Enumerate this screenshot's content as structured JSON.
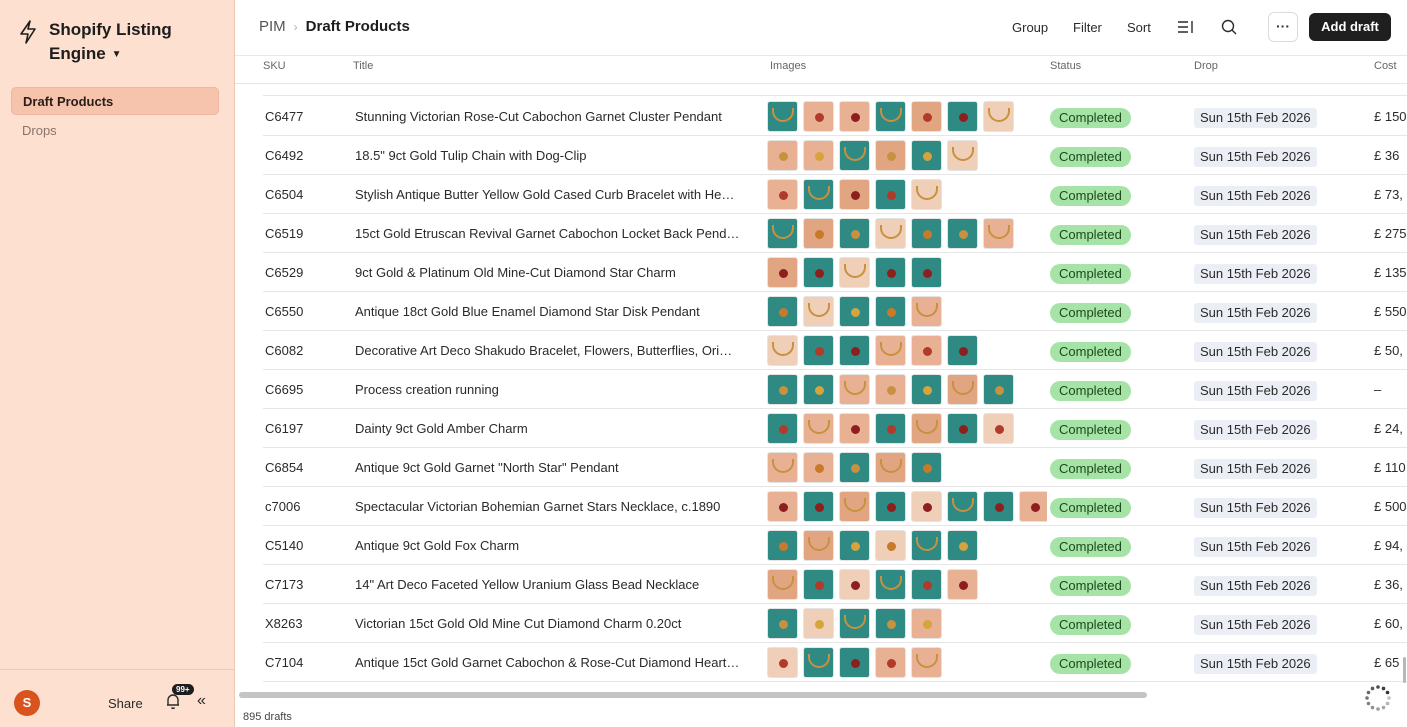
{
  "sidebar": {
    "app_name": "Shopify Listing Engine",
    "nav": [
      {
        "label": "Draft Products",
        "active": true
      },
      {
        "label": "Drops",
        "active": false
      }
    ],
    "user_initial": "S",
    "share_label": "Share",
    "notifications_badge": "99+"
  },
  "header": {
    "breadcrumb_root": "PIM",
    "breadcrumb_current": "Draft Products",
    "group_label": "Group",
    "filter_label": "Filter",
    "sort_label": "Sort",
    "more_label": "···",
    "add_label": "Add draft"
  },
  "table": {
    "columns": {
      "sku": "SKU",
      "title": "Title",
      "images": "Images",
      "status": "Status",
      "drop": "Drop",
      "cost": "Cost"
    },
    "rows": [
      {
        "sku": "C6477",
        "title": "Stunning Victorian Rose-Cut Cabochon Garnet Cluster Pendant",
        "images": 7,
        "status": "Completed",
        "drop": "Sun 15th Feb 2026",
        "cost": "£ 150"
      },
      {
        "sku": "C6492",
        "title": "18.5\" 9ct Gold Tulip Chain with Dog-Clip",
        "images": 6,
        "status": "Completed",
        "drop": "Sun 15th Feb 2026",
        "cost": "£ 36"
      },
      {
        "sku": "C6504",
        "title": "Stylish Antique Butter Yellow Gold Cased Curb Bracelet with He…",
        "images": 5,
        "status": "Completed",
        "drop": "Sun 15th Feb 2026",
        "cost": "£ 73,"
      },
      {
        "sku": "C6519",
        "title": "15ct Gold Etruscan Revival Garnet Cabochon Locket Back Pend…",
        "images": 7,
        "status": "Completed",
        "drop": "Sun 15th Feb 2026",
        "cost": "£ 275"
      },
      {
        "sku": "C6529",
        "title": "9ct Gold & Platinum Old Mine-Cut Diamond Star Charm",
        "images": 5,
        "status": "Completed",
        "drop": "Sun 15th Feb 2026",
        "cost": "£ 135"
      },
      {
        "sku": "C6550",
        "title": "Antique 18ct Gold Blue Enamel Diamond Star Disk Pendant",
        "images": 5,
        "status": "Completed",
        "drop": "Sun 15th Feb 2026",
        "cost": "£ 550"
      },
      {
        "sku": "C6082",
        "title": "Decorative Art Deco Shakudo Bracelet, Flowers, Butterflies, Ori…",
        "images": 6,
        "status": "Completed",
        "drop": "Sun 15th Feb 2026",
        "cost": "£ 50,"
      },
      {
        "sku": "C6695",
        "title": "Process creation running",
        "images": 7,
        "status": "Completed",
        "drop": "Sun 15th Feb 2026",
        "cost": "–"
      },
      {
        "sku": "C6197",
        "title": "Dainty 9ct Gold Amber Charm",
        "images": 7,
        "status": "Completed",
        "drop": "Sun 15th Feb 2026",
        "cost": "£ 24,"
      },
      {
        "sku": "C6854",
        "title": "Antique 9ct Gold Garnet \"North Star\" Pendant",
        "images": 5,
        "status": "Completed",
        "drop": "Sun 15th Feb 2026",
        "cost": "£ 110"
      },
      {
        "sku": "c7006",
        "title": "Spectacular Victorian Bohemian Garnet Stars Necklace, c.1890",
        "images": 8,
        "status": "Completed",
        "drop": "Sun 15th Feb 2026",
        "cost": "£ 500"
      },
      {
        "sku": "C5140",
        "title": "Antique 9ct Gold Fox Charm",
        "images": 6,
        "status": "Completed",
        "drop": "Sun 15th Feb 2026",
        "cost": "£ 94,"
      },
      {
        "sku": "C7173",
        "title": "14\" Art Deco Faceted Yellow Uranium Glass Bead Necklace",
        "images": 6,
        "status": "Completed",
        "drop": "Sun 15th Feb 2026",
        "cost": "£ 36,"
      },
      {
        "sku": "X8263",
        "title": "Victorian 15ct Gold Old Mine Cut Diamond Charm 0.20ct",
        "images": 5,
        "status": "Completed",
        "drop": "Sun 15th Feb 2026",
        "cost": "£ 60,"
      },
      {
        "sku": "C7104",
        "title": "Antique 15ct Gold Garnet Cabochon & Rose-Cut Diamond Heart…",
        "images": 5,
        "status": "Completed",
        "drop": "Sun 15th Feb 2026",
        "cost": "£ 65"
      }
    ]
  },
  "footer": {
    "count_label": "895 drafts"
  },
  "colors": {
    "sidebar_bg": "#fde0cf",
    "status_green": "#a6e3a6",
    "thumb_teal": "#2f8a84",
    "thumb_skin": "#e9b193",
    "garnet": "#8e1f1f"
  }
}
